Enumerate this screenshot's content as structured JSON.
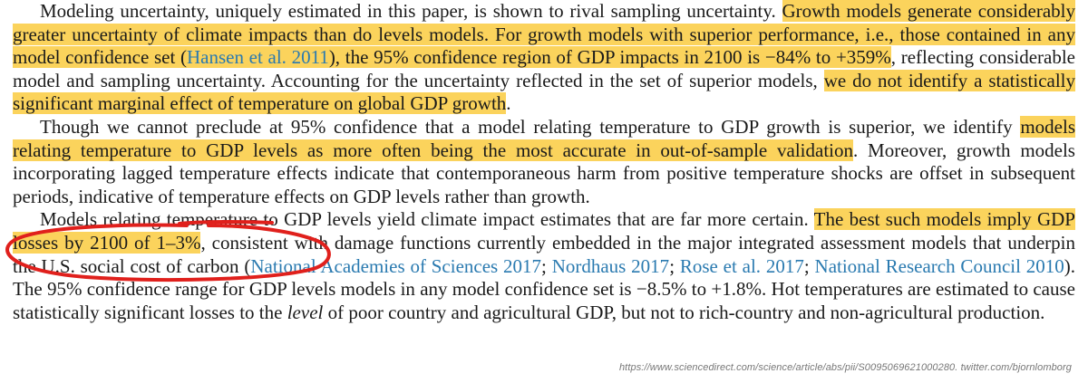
{
  "paragraphs": [
    {
      "segments": [
        {
          "text": "Modeling uncertainty, uniquely estimated in this paper, is shown to rival sampling uncertainty. ",
          "style": "plain"
        },
        {
          "text": "Growth models generate considerably greater uncertainty of climate impacts than do levels models. For growth models with superior performance, i.e., those contained in any model confidence set (",
          "style": "highlight"
        },
        {
          "text": "Hansen et al. 2011",
          "style": "highlight-cite"
        },
        {
          "text": "), the 95% confidence region of GDP impacts in 2100 is −84% to +359%",
          "style": "highlight"
        },
        {
          "text": ", reflecting considerable model and sampling uncertainty. Accounting for the uncertainty reflected in the set of superior models, ",
          "style": "plain"
        },
        {
          "text": "we do not identify a statistically significant marginal effect of temperature on global GDP growth",
          "style": "highlight"
        },
        {
          "text": ".",
          "style": "plain"
        }
      ]
    },
    {
      "segments": [
        {
          "text": "Though we cannot preclude at 95% confidence that a model relating temperature to GDP growth is superior, we identify ",
          "style": "plain"
        },
        {
          "text": "models relating temperature to GDP levels as more often being the most accurate in out-of-sample validation",
          "style": "highlight"
        },
        {
          "text": ". Moreover, growth models incorporating lagged temperature effects indicate that contemporaneous harm from positive temperature shocks are offset in subsequent periods, indicative of temperature effects on GDP levels rather than growth.",
          "style": "plain"
        }
      ]
    },
    {
      "segments": [
        {
          "text": "Models relating temperature to GDP levels yield climate impact estimates that are far more certain. ",
          "style": "plain"
        },
        {
          "text": "The best such models imply GDP losses by 2100 of 1–3%",
          "style": "highlight"
        },
        {
          "text": ", consistent with damage functions currently embedded in the major integrated assessment models that underpin the U.S. social cost of carbon (",
          "style": "plain"
        },
        {
          "text": "National Academies of Sciences 2017",
          "style": "cite"
        },
        {
          "text": "; ",
          "style": "plain"
        },
        {
          "text": "Nordhaus 2017",
          "style": "cite"
        },
        {
          "text": "; ",
          "style": "plain"
        },
        {
          "text": "Rose et al. 2017",
          "style": "cite"
        },
        {
          "text": "; ",
          "style": "plain"
        },
        {
          "text": "National Research Council 2010",
          "style": "cite"
        },
        {
          "text": "). The 95% confidence range for GDP levels models in any model confidence set is −8.5% to +1.8%. Hot temperatures are estimated to cause statistically significant losses to the ",
          "style": "plain"
        },
        {
          "text": "level",
          "style": "italic"
        },
        {
          "text": " of poor country and agricultural GDP, but not to rich-country and non-agricultural production.",
          "style": "plain"
        }
      ]
    }
  ],
  "source_note": "https://www.sciencedirect.com/science/article/abs/pii/S0095069621000280. twitter.com/bjornlomborg",
  "colors": {
    "highlight": "#fbd35c",
    "citation": "#2a7ab0",
    "annotation_red": "#e0201c"
  }
}
